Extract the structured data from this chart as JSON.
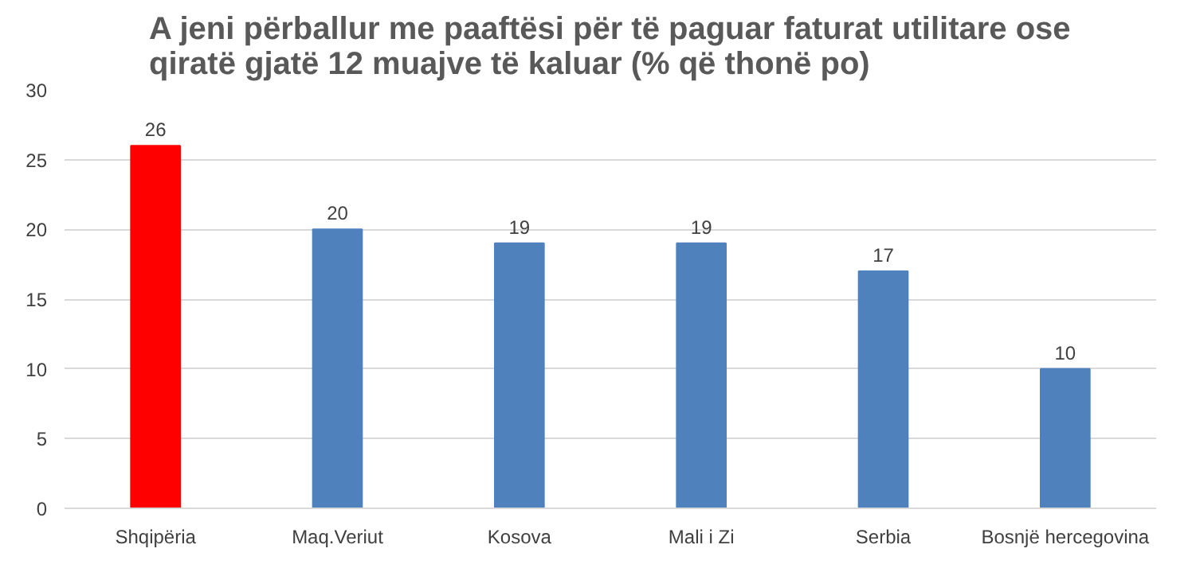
{
  "chart_data": {
    "type": "bar",
    "title": "A jeni përballur me paaftësi për të paguar faturat utilitare ose qiratë gjatë 12 muajve të kaluar (% që thonë po)",
    "categories": [
      "Shqipëria",
      "Maq.Veriut",
      "Kosova",
      "Mali i Zi",
      "Serbia",
      "Bosnjë hercegovina"
    ],
    "values": [
      26,
      20,
      19,
      19,
      17,
      10
    ],
    "colors": [
      "#ff0000",
      "#4f81bd",
      "#4f81bd",
      "#4f81bd",
      "#4f81bd",
      "#4f81bd"
    ],
    "ylim": [
      0,
      30
    ],
    "yticks": [
      0,
      5,
      10,
      15,
      20,
      25,
      30
    ],
    "grid": "y",
    "data_labels": true
  }
}
